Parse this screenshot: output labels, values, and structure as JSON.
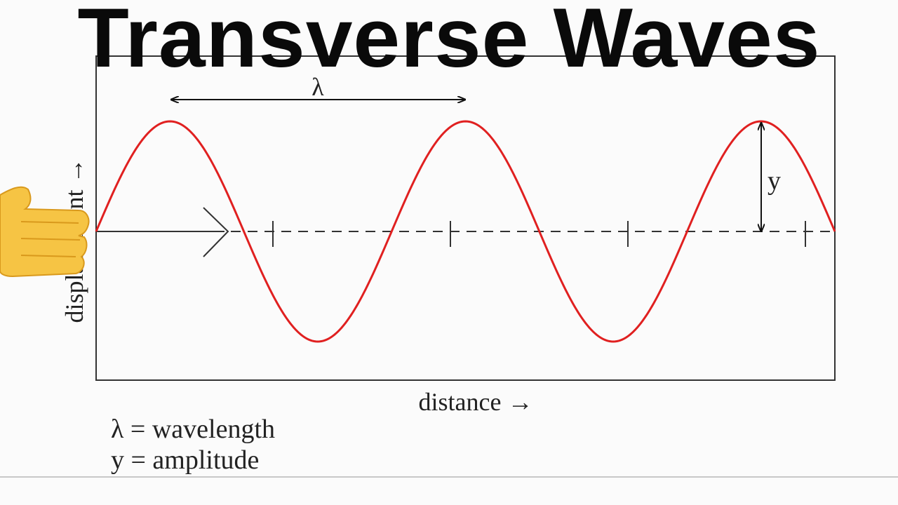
{
  "title": "Transverse Waves",
  "diagram": {
    "wavelength_symbol": "λ",
    "amplitude_symbol": "y",
    "x_axis_label": "distance →",
    "y_axis_label": "displacement →",
    "wave_color": "#e02020",
    "wave_cycles": 2.5
  },
  "legend": {
    "line1": "λ = wavelength",
    "line2": "y = amplitude"
  },
  "hand_icon": "pointing-hand-icon"
}
